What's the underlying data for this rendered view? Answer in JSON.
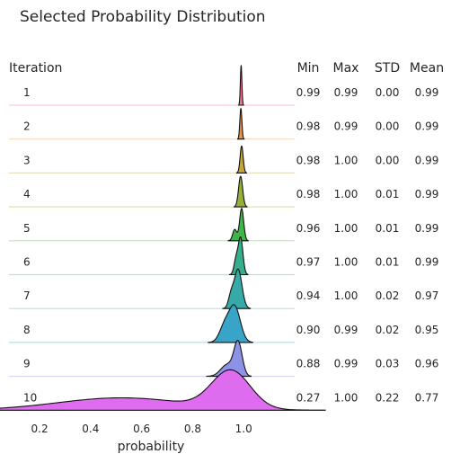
{
  "chart_data": {
    "type": "ridgeline",
    "title": "Selected Probability Distribution",
    "xlabel": "probability",
    "xlim": [
      0.08,
      1.2
    ],
    "xticks": [
      "0.2",
      "0.4",
      "0.6",
      "0.8",
      "1.0"
    ],
    "xtick_values": [
      0.2,
      0.4,
      0.6,
      0.8,
      1.0
    ],
    "row_header": "Iteration",
    "stat_headers": [
      "Min",
      "Max",
      "STD",
      "Mean"
    ],
    "grid": false,
    "legend": "none",
    "series": [
      {
        "label": "1",
        "color": "#f7768c",
        "min": "0.99",
        "max": "0.99",
        "std": "0.00",
        "mean": "0.99"
      },
      {
        "label": "2",
        "color": "#e89240",
        "min": "0.98",
        "max": "0.99",
        "std": "0.00",
        "mean": "0.99"
      },
      {
        "label": "3",
        "color": "#c4a43a",
        "min": "0.98",
        "max": "1.00",
        "std": "0.00",
        "mean": "0.99"
      },
      {
        "label": "4",
        "color": "#98ae3a",
        "min": "0.98",
        "max": "1.00",
        "std": "0.01",
        "mean": "0.99"
      },
      {
        "label": "5",
        "color": "#3eb449",
        "min": "0.96",
        "max": "1.00",
        "std": "0.01",
        "mean": "0.99"
      },
      {
        "label": "6",
        "color": "#36ae8c",
        "min": "0.97",
        "max": "1.00",
        "std": "0.01",
        "mean": "0.99"
      },
      {
        "label": "7",
        "color": "#36aaa6",
        "min": "0.94",
        "max": "1.00",
        "std": "0.02",
        "mean": "0.97"
      },
      {
        "label": "8",
        "color": "#38a4c8",
        "min": "0.90",
        "max": "0.99",
        "std": "0.02",
        "mean": "0.95"
      },
      {
        "label": "9",
        "color": "#8c93e6",
        "min": "0.88",
        "max": "0.99",
        "std": "0.03",
        "mean": "0.96"
      },
      {
        "label": "10",
        "color": "#dd6cee",
        "min": "0.27",
        "max": "1.00",
        "std": "0.22",
        "mean": "0.77"
      }
    ]
  }
}
